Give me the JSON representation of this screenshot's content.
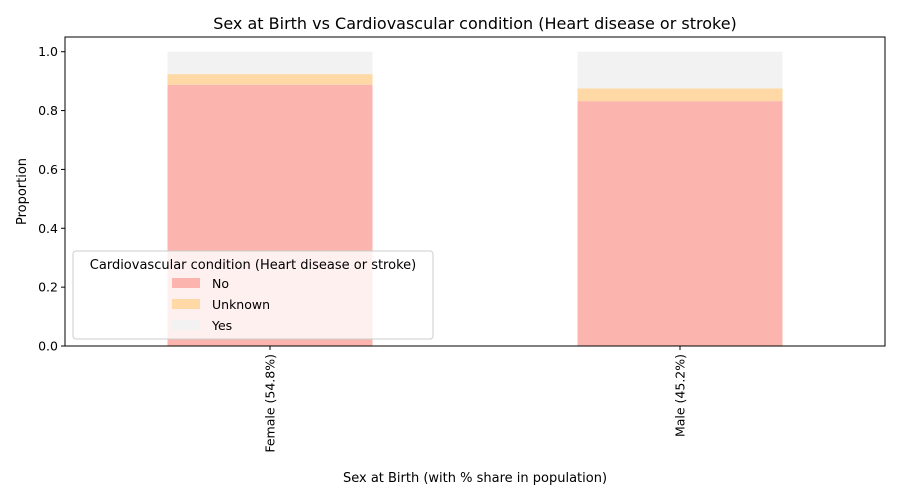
{
  "chart_data": {
    "type": "bar",
    "stacked": true,
    "title": "Sex at Birth vs Cardiovascular condition (Heart disease or stroke)",
    "xlabel": "Sex at Birth (with % share in population)",
    "ylabel": "Proportion",
    "ylim": [
      0,
      1.05
    ],
    "yticks": [
      0.0,
      0.2,
      0.4,
      0.6,
      0.8,
      1.0
    ],
    "ytick_labels": [
      "0.0",
      "0.2",
      "0.4",
      "0.6",
      "0.8",
      "1.0"
    ],
    "categories": [
      "Female (54.8%)",
      "Male (45.2%)"
    ],
    "series": [
      {
        "name": "No",
        "color": "#fbb4ae",
        "values": [
          0.888,
          0.832
        ]
      },
      {
        "name": "Unknown",
        "color": "#fed9a6",
        "values": [
          0.036,
          0.043
        ]
      },
      {
        "name": "Yes",
        "color": "#f2f2f2",
        "values": [
          0.076,
          0.125
        ]
      }
    ],
    "legend": {
      "title": "Cardiovascular condition (Heart disease or stroke)",
      "placement": "lower-left"
    },
    "grid": false
  }
}
